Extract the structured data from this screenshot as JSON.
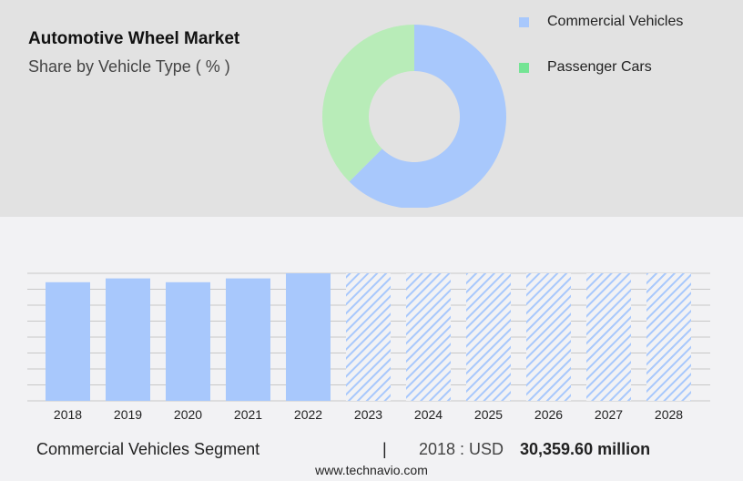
{
  "title": "Automotive Wheel Market",
  "subtitle": "Share by Vehicle Type ( % )",
  "colors": {
    "commercial": "#a8c8fc",
    "passenger": "#b8ecb8",
    "passenger_legend": "#74e494",
    "forecast_hatch": "#a8c8fc"
  },
  "chart_data": [
    {
      "type": "pie",
      "donut": true,
      "categories": [
        "Commercial Vehicles",
        "Passenger Cars"
      ],
      "values": [
        62.5,
        37.5
      ],
      "legend": "top-right"
    },
    {
      "type": "bar",
      "categories": [
        "2018",
        "2019",
        "2020",
        "2021",
        "2022",
        "2023",
        "2024",
        "2025",
        "2026",
        "2027",
        "2028"
      ],
      "values": [
        0.93,
        0.96,
        0.93,
        0.96,
        1.0,
        1.0,
        1.0,
        1.0,
        1.0,
        1.0,
        1.0
      ],
      "forecast_from": "2023",
      "grid": true,
      "ylim": [
        0,
        1
      ]
    }
  ],
  "footer": {
    "segment": "Commercial Vehicles Segment",
    "separator": "|",
    "year_label": "2018 : USD",
    "value": "30,359.60 million"
  },
  "site": "www.technavio.com"
}
